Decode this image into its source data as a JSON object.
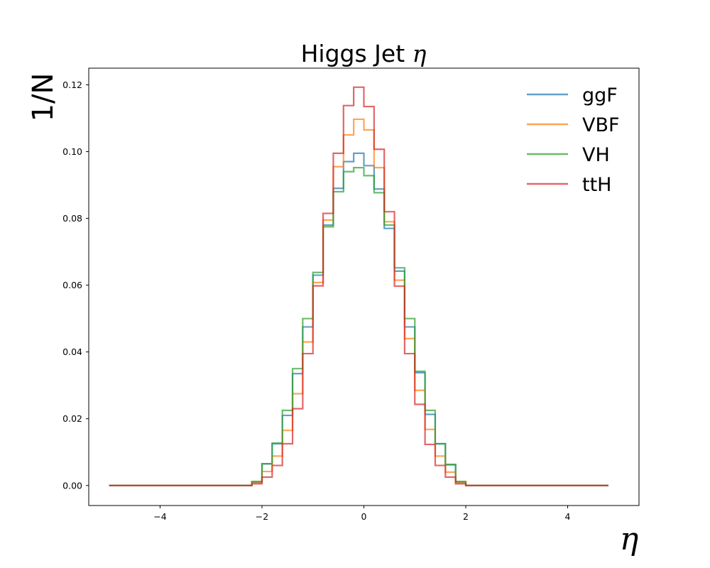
{
  "chart_data": {
    "type": "line",
    "title_text": "Higgs Jet ",
    "title_symbol": "η",
    "xlabel": "η",
    "ylabel": "1/N",
    "xlim": [
      -5.4,
      5.4
    ],
    "ylim": [
      -0.006,
      0.125
    ],
    "x_ticks": [
      -4,
      -2,
      0,
      2,
      4
    ],
    "x_tick_labels": [
      "−4",
      "−2",
      "0",
      "2",
      "4"
    ],
    "y_ticks": [
      0.0,
      0.02,
      0.04,
      0.06,
      0.08,
      0.1,
      0.12
    ],
    "y_tick_labels": [
      "0.00",
      "0.02",
      "0.04",
      "0.06",
      "0.08",
      "0.10",
      "0.12"
    ],
    "grid": false,
    "legend_position": "top-right",
    "bin_edges": [
      -5.0,
      -4.8,
      -4.6,
      -4.4,
      -4.2,
      -4.0,
      -3.8,
      -3.6,
      -3.4,
      -3.2,
      -3.0,
      -2.8,
      -2.6,
      -2.4,
      -2.2,
      -2.0,
      -1.8,
      -1.6,
      -1.4,
      -1.2,
      -1.0,
      -0.8,
      -0.6,
      -0.4,
      -0.2,
      0.0,
      0.2,
      0.4,
      0.6,
      0.8,
      1.0,
      1.2,
      1.4,
      1.6,
      1.8,
      2.0,
      2.2,
      2.4,
      2.6,
      2.8,
      3.0,
      3.2,
      3.4,
      3.6,
      3.8,
      4.0,
      4.2,
      4.4,
      4.6,
      4.8
    ],
    "series": [
      {
        "name": "ggF",
        "color": "#1f77b4",
        "values": [
          0,
          0,
          0,
          0,
          0,
          0,
          0,
          0,
          0,
          0,
          0,
          0,
          0,
          0,
          0.001,
          0.0065,
          0.0125,
          0.021,
          0.0335,
          0.0475,
          0.063,
          0.078,
          0.089,
          0.097,
          0.0995,
          0.0958,
          0.0888,
          0.077,
          0.0642,
          0.0475,
          0.0338,
          0.0213,
          0.0125,
          0.0062,
          0.001,
          0,
          0,
          0,
          0,
          0,
          0,
          0,
          0,
          0,
          0,
          0,
          0,
          0,
          0
        ]
      },
      {
        "name": "VBF",
        "color": "#ff7f0e",
        "values": [
          0,
          0,
          0,
          0,
          0,
          0,
          0,
          0,
          0,
          0,
          0,
          0,
          0,
          0,
          0.0008,
          0.0042,
          0.0088,
          0.0165,
          0.0275,
          0.043,
          0.0608,
          0.0795,
          0.0955,
          0.105,
          0.1097,
          0.1065,
          0.0952,
          0.079,
          0.0615,
          0.044,
          0.0285,
          0.0168,
          0.0088,
          0.004,
          0.0008,
          0,
          0,
          0,
          0,
          0,
          0,
          0,
          0,
          0,
          0,
          0,
          0,
          0,
          0
        ]
      },
      {
        "name": "VH",
        "color": "#2ca02c",
        "values": [
          0,
          0,
          0,
          0,
          0,
          0,
          0,
          0,
          0,
          0,
          0,
          0,
          0,
          0,
          0.0012,
          0.0065,
          0.0127,
          0.0225,
          0.035,
          0.05,
          0.0638,
          0.0775,
          0.088,
          0.094,
          0.0952,
          0.0928,
          0.0877,
          0.078,
          0.0652,
          0.05,
          0.0342,
          0.0225,
          0.0125,
          0.0063,
          0.0012,
          0,
          0,
          0,
          0,
          0,
          0,
          0,
          0,
          0,
          0,
          0,
          0,
          0,
          0
        ]
      },
      {
        "name": "ttH",
        "color": "#d62728",
        "values": [
          0,
          0,
          0,
          0,
          0,
          0,
          0,
          0,
          0,
          0,
          0,
          0,
          0,
          0,
          0.0005,
          0.0025,
          0.006,
          0.0125,
          0.023,
          0.0395,
          0.0598,
          0.0815,
          0.0995,
          0.1138,
          0.1193,
          0.1135,
          0.1007,
          0.082,
          0.0597,
          0.0395,
          0.0243,
          0.0123,
          0.006,
          0.0025,
          0.0005,
          0,
          0,
          0,
          0,
          0,
          0,
          0,
          0,
          0,
          0,
          0,
          0,
          0,
          0
        ]
      }
    ]
  }
}
